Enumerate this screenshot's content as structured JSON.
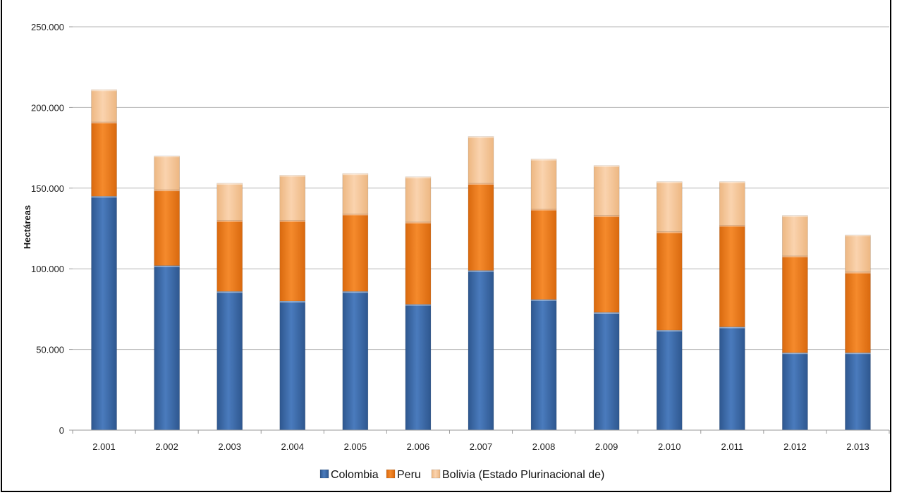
{
  "chart_data": {
    "type": "bar",
    "stacked": true,
    "title": "",
    "xlabel": "",
    "ylabel": "Hectáreas",
    "ylim": [
      0,
      250000
    ],
    "yticks": [
      0,
      50000,
      100000,
      150000,
      200000,
      250000
    ],
    "ytick_labels": [
      "0",
      "50.000",
      "100.000",
      "150.000",
      "200.000",
      "250.000"
    ],
    "grid": true,
    "legend_position": "bottom",
    "categories": [
      "2.001",
      "2.002",
      "2.003",
      "2.004",
      "2.005",
      "2.006",
      "2.007",
      "2.008",
      "2.009",
      "2.010",
      "2.011",
      "2.012",
      "2.013"
    ],
    "series": [
      {
        "name": "Colombia",
        "color": "#3D6BA8",
        "values": [
          145000,
          102000,
          86000,
          80000,
          86000,
          78000,
          99000,
          81000,
          73000,
          62000,
          64000,
          48000,
          48000
        ]
      },
      {
        "name": "Peru",
        "color": "#F07F1C",
        "values": [
          46000,
          47000,
          44000,
          50000,
          48000,
          51000,
          54000,
          56000,
          60000,
          61000,
          63000,
          60000,
          50000
        ]
      },
      {
        "name": "Bolivia (Estado Plurinacional de)",
        "color": "#F7C79B",
        "values": [
          20000,
          21000,
          23000,
          28000,
          25000,
          28000,
          29000,
          31000,
          31000,
          31000,
          27000,
          25000,
          23000
        ]
      }
    ]
  }
}
